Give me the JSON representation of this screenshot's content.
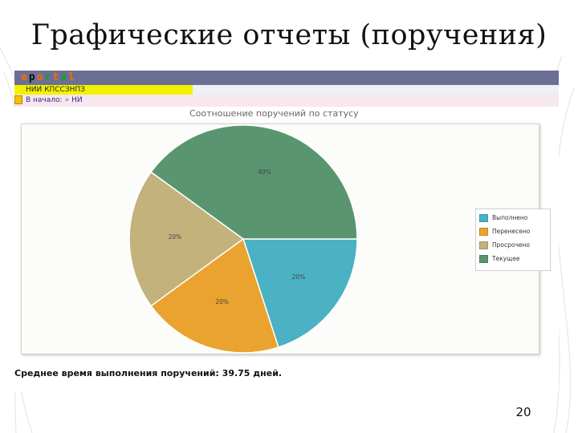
{
  "slide": {
    "title": "Графические отчеты (поручения)",
    "page_number": "20"
  },
  "portal": {
    "logo": "eportal",
    "logo_colors": [
      "#ff6a00",
      "#111111",
      "#ff6a00",
      "#1a9b2a",
      "#ff6a00",
      "#1a9b2a",
      "#ff6a00"
    ],
    "org_name": "НИИ КПССЗНПЗ",
    "crumb_home": "В начало:",
    "crumb_sep": "»",
    "crumb_current": "НИ"
  },
  "chart_data": {
    "type": "pie",
    "title": "Соотношение поручений по статусу",
    "start_angle_deg": 0,
    "slices": [
      {
        "name": "Выполнено",
        "value": 20,
        "label": "20%",
        "color": "#4bb1c5"
      },
      {
        "name": "Перенесено",
        "value": 20,
        "label": "20%",
        "color": "#eaa32e"
      },
      {
        "name": "Просрочено",
        "value": 20,
        "label": "20%",
        "color": "#c3b27c"
      },
      {
        "name": "Текущее",
        "value": 40,
        "label": "40%",
        "color": "#59966f"
      }
    ],
    "legend_position": "right"
  },
  "summary": {
    "avg_text": "Среднее время выполнения поручений: 39.75 дней."
  },
  "colors": {
    "portal_bar": "#6b6f95",
    "org_bar_highlight": "#f2f200",
    "crumb_bar": "#f7e7ee"
  }
}
